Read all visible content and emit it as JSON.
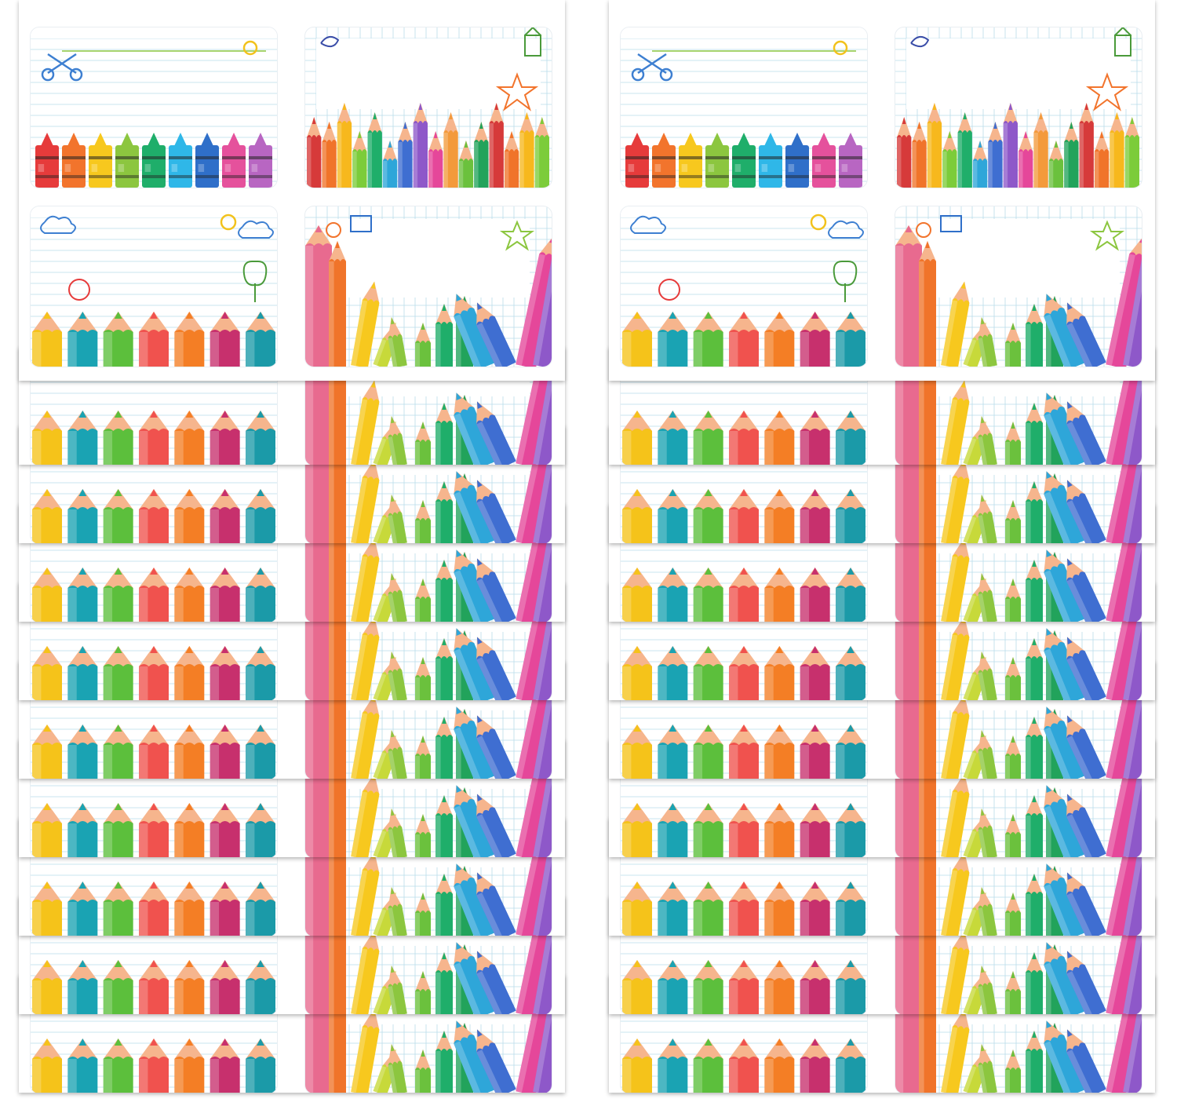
{
  "image": {
    "description_free": true,
    "columns": 2,
    "sheets_per_column": 10,
    "labels_per_sheet": 4
  },
  "palette": {
    "crayons": [
      "#e63b3b",
      "#f2742c",
      "#f7c81e",
      "#8cc63f",
      "#1fae6a",
      "#2fb7e8",
      "#2f6fc9",
      "#e5519c",
      "#b866c2"
    ],
    "pencils_a": [
      "#f5c31a",
      "#1aa3b3",
      "#5cbf3c",
      "#f0524e",
      "#f47e25",
      "#c7306d",
      "#1b9aa8"
    ],
    "pencils_b": [
      "#d63a3a",
      "#f0742a",
      "#f7b81d",
      "#7ccc3a",
      "#1fae6a",
      "#2ea6d9",
      "#3f6ed1",
      "#8e58c9",
      "#e5479a",
      "#f39a3b",
      "#6bc13d",
      "#22a35b"
    ],
    "paper_line": "#b9dcea",
    "shadow": "#9e9e9e"
  }
}
